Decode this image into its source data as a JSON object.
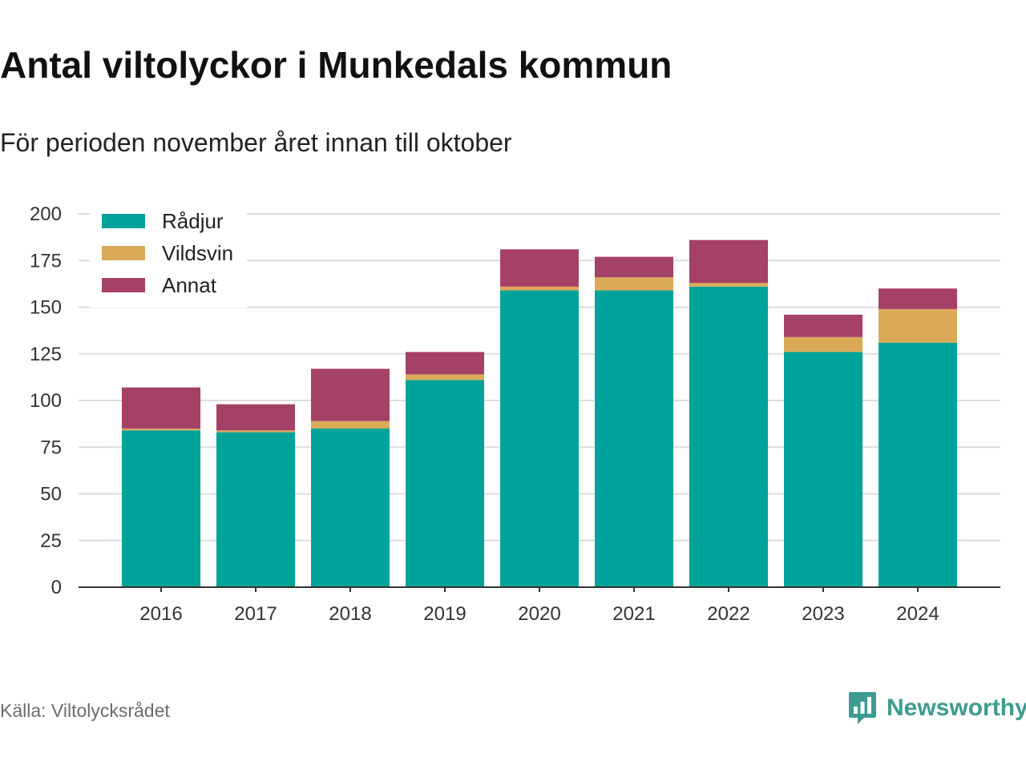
{
  "title": "Antal viltolyckor i Munkedals kommun",
  "subtitle": "För perioden november året innan till oktober",
  "source": "Källa: Viltolycksrådet",
  "brand": {
    "name": "Newsworthy",
    "color": "#3d9b8f",
    "icon": "bar-chart-speech-bubble-icon"
  },
  "chart_data": {
    "type": "bar",
    "stacked": true,
    "categories": [
      "2016",
      "2017",
      "2018",
      "2019",
      "2020",
      "2021",
      "2022",
      "2023",
      "2024"
    ],
    "series": [
      {
        "name": "Rådjur",
        "color": "#00a39a",
        "values": [
          84,
          83,
          85,
          111,
          159,
          159,
          161,
          126,
          131
        ]
      },
      {
        "name": "Vildsvin",
        "color": "#dbaa58",
        "values": [
          1,
          1,
          4,
          3,
          2,
          7,
          2,
          8,
          18
        ]
      },
      {
        "name": "Annat",
        "color": "#a54067",
        "values": [
          22,
          14,
          28,
          12,
          20,
          11,
          23,
          12,
          11
        ]
      }
    ],
    "ylim": [
      0,
      200
    ],
    "yticks": [
      0,
      25,
      50,
      75,
      100,
      125,
      150,
      175,
      200
    ],
    "grid": true,
    "legend": "top-left"
  }
}
